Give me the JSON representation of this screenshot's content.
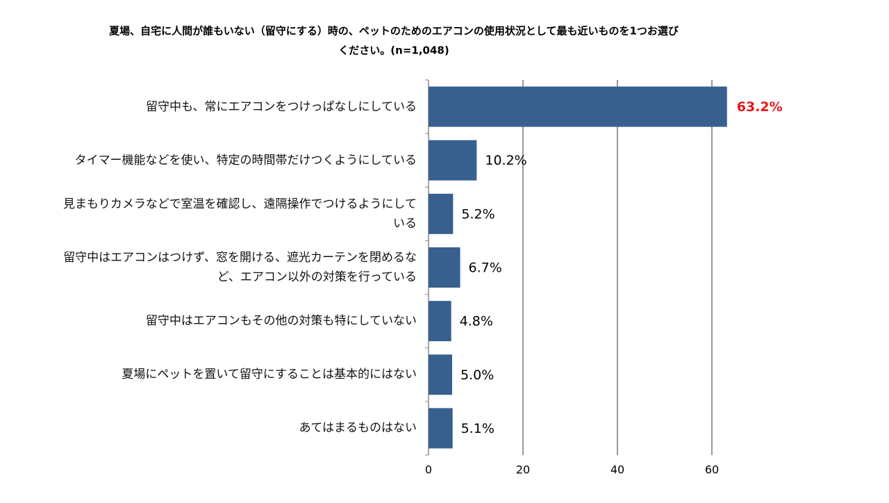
{
  "chart_data": {
    "type": "barh",
    "title": [
      "夏場、自宅に人間が誰もいない（留守にする）時の、ペットのためのエアコンの使用状況として最も近いものを1つお選び",
      "ください。(n=1,048)"
    ],
    "categories": [
      "留守中も、常にエアコンをつけっぱなしにしている",
      "タイマー機能などを使い、特定の時間帯だけつくようにしている",
      "見まもりカメラなどで室温を確認し、遠隔操作でつけるようにしている",
      "留守中はエアコンはつけず、窓を開ける、遮光カーテンを閉めるなど、エアコン以外の対策を行っている",
      "留守中はエアコンもその他の対策も特にしていない",
      "夏場にペットを置いて留守にすることは基本的にはない",
      "あてはまるものはない"
    ],
    "values": [
      63.2,
      10.2,
      5.2,
      6.7,
      4.8,
      5.0,
      5.1
    ],
    "value_labels": [
      "63.2%",
      "10.2%",
      "5.2%",
      "6.7%",
      "4.8%",
      "5.0%",
      "5.1%"
    ],
    "value_label_colors": [
      "#e8161c",
      "#000000",
      "#000000",
      "#000000",
      "#000000",
      "#000000",
      "#000000"
    ],
    "color": "#37608f",
    "xlim": [
      0,
      65
    ],
    "xticks": [
      0,
      20,
      40,
      60
    ],
    "grid": true
  }
}
